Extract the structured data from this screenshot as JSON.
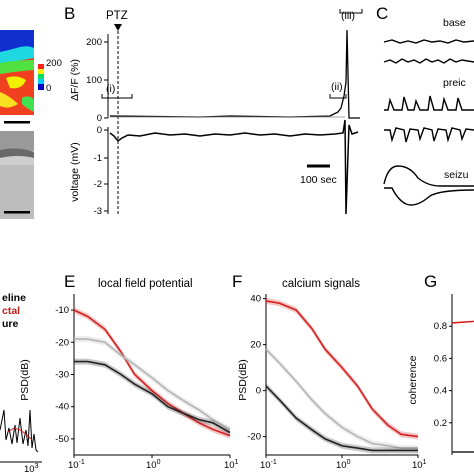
{
  "panels": {
    "B": "B",
    "C": "C",
    "E": "E",
    "F": "F",
    "G": "G"
  },
  "colorbar": {
    "max_label": "200",
    "min_label": "0",
    "colors": [
      "#0000c8",
      "#00c8ff",
      "#00e060",
      "#f0f000",
      "#ff2020"
    ]
  },
  "panelB": {
    "drug_label": "PTZ",
    "y_label": "ΔF/F (%)",
    "y_ticks": [
      "200",
      "100",
      "0"
    ],
    "stage_i": "(i)",
    "stage_ii": "(ii)",
    "stage_iii": "(iii)",
    "voltage_label": "voltage (mV)",
    "voltage_ticks": [
      "0",
      "-1",
      "-2",
      "-3"
    ],
    "scalebar_label": "100 sec"
  },
  "panelC": {
    "labels": [
      "base",
      "preic",
      "seizu"
    ]
  },
  "panelD_legend": [
    "eline",
    "ctal",
    "ure"
  ],
  "panelD_xtick": "10",
  "panelD_xtick_exp": "3",
  "chart_data": [
    {
      "type": "line",
      "title": "local field potential",
      "ylabel": "PSD(dB)",
      "xscale": "log",
      "xlim": [
        0.1,
        10
      ],
      "ylim": [
        -55,
        -5
      ],
      "y_ticks": [
        "-10",
        "-20",
        "-30",
        "-40",
        "-50"
      ],
      "x_ticks": [
        {
          "base": "10",
          "exp": "-1"
        },
        {
          "base": "10",
          "exp": "0"
        },
        {
          "base": "10",
          "exp": "1"
        }
      ],
      "series": [
        {
          "color": "#d42020",
          "x": [
            0.1,
            0.15,
            0.25,
            0.4,
            0.6,
            1,
            1.6,
            2.5,
            4,
            6,
            10
          ],
          "y": [
            -10,
            -12,
            -16,
            -23,
            -30,
            -35,
            -39,
            -42,
            -45,
            -47,
            -49
          ]
        },
        {
          "color": "#b4b4b4",
          "x": [
            0.1,
            0.15,
            0.25,
            0.4,
            0.6,
            1,
            1.6,
            2.5,
            4,
            6,
            10
          ],
          "y": [
            -19,
            -19,
            -20,
            -24,
            -27,
            -31,
            -35,
            -38,
            -41,
            -44,
            -47
          ]
        },
        {
          "color": "#222222",
          "x": [
            0.1,
            0.15,
            0.25,
            0.4,
            0.6,
            1,
            1.6,
            2.5,
            4,
            6,
            10
          ],
          "y": [
            -26,
            -26,
            -27,
            -30,
            -33,
            -36,
            -40,
            -42,
            -44,
            -45,
            -48
          ]
        }
      ]
    },
    {
      "type": "line",
      "title": "calcium signals",
      "ylabel": "PSD(dB)",
      "xscale": "log",
      "xlim": [
        0.1,
        10
      ],
      "ylim": [
        -28,
        42
      ],
      "y_ticks": [
        "40",
        "20",
        "0",
        "-20"
      ],
      "x_ticks": [
        {
          "base": "10",
          "exp": "-1"
        },
        {
          "base": "10",
          "exp": "0"
        },
        {
          "base": "10",
          "exp": "1"
        }
      ],
      "series": [
        {
          "color": "#d42020",
          "x": [
            0.1,
            0.15,
            0.25,
            0.4,
            0.6,
            1,
            1.6,
            2.5,
            4,
            6,
            10
          ],
          "y": [
            39,
            38,
            35,
            27,
            18,
            10,
            2,
            -8,
            -15,
            -19,
            -20
          ]
        },
        {
          "color": "#b4b4b4",
          "x": [
            0.1,
            0.15,
            0.25,
            0.4,
            0.6,
            1,
            1.6,
            2.5,
            4,
            6,
            10
          ],
          "y": [
            18,
            12,
            4,
            -4,
            -10,
            -16,
            -20,
            -23,
            -24,
            -25,
            -25
          ]
        },
        {
          "color": "#222222",
          "x": [
            0.1,
            0.15,
            0.25,
            0.4,
            0.6,
            1,
            1.6,
            2.5,
            4,
            6,
            10
          ],
          "y": [
            2,
            -4,
            -12,
            -17,
            -21,
            -24,
            -25,
            -26,
            -26,
            -26,
            -26
          ]
        }
      ]
    },
    {
      "type": "line",
      "ylabel": "coherence",
      "ylim": [
        0,
        1
      ],
      "y_ticks": [
        "0.8",
        "0.6",
        "0.4",
        "0.2"
      ],
      "series": [
        {
          "color": "#d42020",
          "x": [
            0.1,
            0.3
          ],
          "y": [
            0.82,
            0.83
          ]
        }
      ]
    }
  ]
}
